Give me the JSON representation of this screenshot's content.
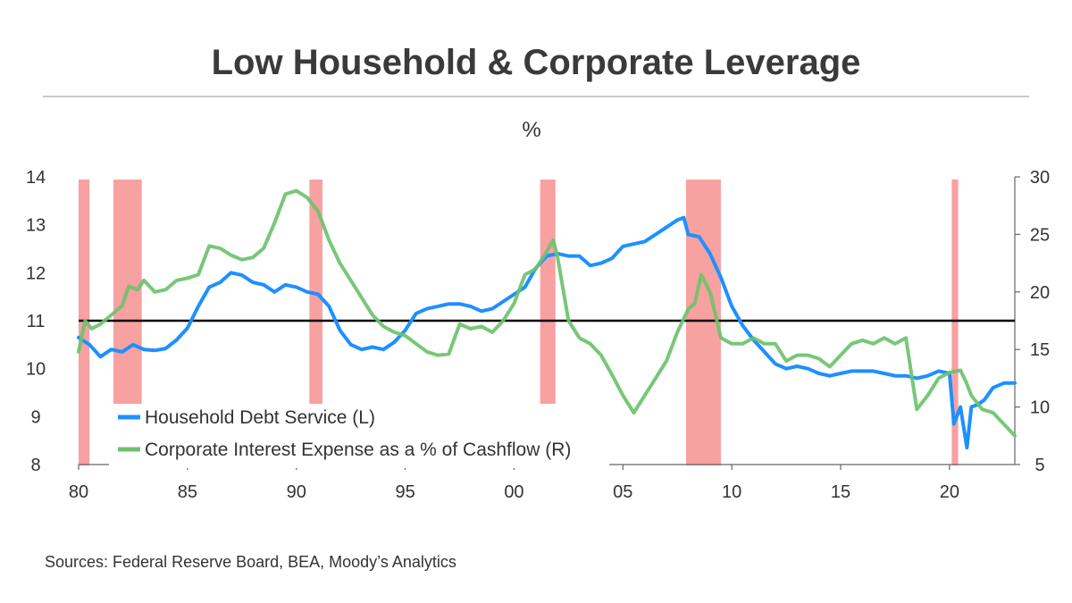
{
  "title": "Low Household & Corporate Leverage",
  "unit_label": "%",
  "source": "Sources: Federal Reserve Board, BEA, Moody’s Analytics",
  "colors": {
    "household": "#1e90ff",
    "corporate": "#6cc26c",
    "recession": "#f7a1a1",
    "reference": "#000000"
  },
  "chart_data": {
    "type": "line",
    "title": "Low Household & Corporate Leverage",
    "ylabel": "%",
    "xlim": [
      1980,
      2023
    ],
    "x_ticks": [
      1980,
      1985,
      1990,
      1995,
      2000,
      2005,
      2010,
      2015,
      2020
    ],
    "x_tick_labels": [
      "80",
      "85",
      "90",
      "95",
      "00",
      "05",
      "10",
      "15",
      "20"
    ],
    "y_left_lim": [
      8,
      14
    ],
    "y_left_ticks": [
      "8",
      "9",
      "10",
      "11",
      "12",
      "13",
      "14"
    ],
    "y_right_lim": [
      5,
      30
    ],
    "y_right_ticks": [
      "5",
      "10",
      "15",
      "20",
      "25",
      "30"
    ],
    "reference_line_left": 11,
    "grid": false,
    "legend_placement": "bottom-left",
    "recessions": [
      [
        1980.0,
        1980.5
      ],
      [
        1981.6,
        1982.9
      ],
      [
        1990.6,
        1991.2
      ],
      [
        2001.2,
        2001.9
      ],
      [
        2007.9,
        2009.5
      ],
      [
        2020.1,
        2020.4
      ]
    ],
    "series": [
      {
        "name": "Household Debt Service (L)",
        "axis": "left",
        "x": [
          1980,
          1980.5,
          1981,
          1981.5,
          1982,
          1982.5,
          1983,
          1983.5,
          1984,
          1984.5,
          1985,
          1985.5,
          1986,
          1986.5,
          1987,
          1987.5,
          1988,
          1988.5,
          1989,
          1989.5,
          1990,
          1990.5,
          1991,
          1991.5,
          1992,
          1992.5,
          1993,
          1993.5,
          1994,
          1994.5,
          1995,
          1995.5,
          1996,
          1996.5,
          1997,
          1997.5,
          1998,
          1998.5,
          1999,
          1999.5,
          2000,
          2000.5,
          2001,
          2001.5,
          2002,
          2002.5,
          2003,
          2003.5,
          2004,
          2004.5,
          2005,
          2005.5,
          2006,
          2006.5,
          2007,
          2007.5,
          2007.8,
          2008,
          2008.5,
          2009,
          2009.5,
          2010,
          2010.5,
          2011,
          2011.5,
          2012,
          2012.5,
          2013,
          2013.5,
          2014,
          2014.5,
          2015,
          2015.5,
          2016,
          2016.5,
          2017,
          2017.5,
          2018,
          2018.5,
          2019,
          2019.5,
          2020,
          2020.2,
          2020.5,
          2020.8,
          2021,
          2021.3,
          2021.6,
          2022,
          2022.5,
          2023
        ],
        "values": [
          10.65,
          10.5,
          10.25,
          10.4,
          10.35,
          10.5,
          10.4,
          10.38,
          10.42,
          10.6,
          10.85,
          11.3,
          11.7,
          11.8,
          12.0,
          11.95,
          11.8,
          11.75,
          11.6,
          11.75,
          11.7,
          11.6,
          11.55,
          11.3,
          10.8,
          10.5,
          10.4,
          10.45,
          10.4,
          10.55,
          10.8,
          11.15,
          11.25,
          11.3,
          11.35,
          11.35,
          11.3,
          11.2,
          11.25,
          11.4,
          11.55,
          11.7,
          12.1,
          12.35,
          12.4,
          12.35,
          12.35,
          12.15,
          12.2,
          12.3,
          12.55,
          12.6,
          12.65,
          12.8,
          12.95,
          13.1,
          13.15,
          12.8,
          12.75,
          12.4,
          11.9,
          11.3,
          10.9,
          10.6,
          10.35,
          10.1,
          10.0,
          10.05,
          10.0,
          9.9,
          9.85,
          9.9,
          9.95,
          9.95,
          9.95,
          9.9,
          9.85,
          9.85,
          9.8,
          9.85,
          9.95,
          9.9,
          8.85,
          9.2,
          8.35,
          9.2,
          9.25,
          9.35,
          9.6,
          9.7,
          9.7
        ]
      },
      {
        "name": "Corporate Interest Expense as a % of Cashflow (R)",
        "axis": "right",
        "x": [
          1980,
          1980.3,
          1980.6,
          1981,
          1981.5,
          1982,
          1982.3,
          1982.7,
          1983,
          1983.5,
          1984,
          1984.5,
          1985,
          1985.5,
          1986,
          1986.5,
          1987,
          1987.5,
          1988,
          1988.5,
          1989,
          1989.5,
          1990,
          1990.5,
          1991,
          1991.5,
          1992,
          1992.5,
          1993,
          1993.5,
          1994,
          1994.5,
          1995,
          1995.5,
          1996,
          1996.5,
          1997,
          1997.5,
          1998,
          1998.5,
          1999,
          1999.5,
          2000,
          2000.5,
          2001,
          2001.5,
          2001.8,
          2002,
          2002.5,
          2003,
          2003.5,
          2004,
          2004.5,
          2005,
          2005.5,
          2006,
          2006.5,
          2007,
          2007.5,
          2008,
          2008.3,
          2008.6,
          2009,
          2009.5,
          2010,
          2010.5,
          2011,
          2011.5,
          2012,
          2012.5,
          2013,
          2013.5,
          2014,
          2014.5,
          2015,
          2015.5,
          2016,
          2016.5,
          2017,
          2017.5,
          2018,
          2018.5,
          2019,
          2019.5,
          2020,
          2020.5,
          2020.8,
          2021,
          2021.5,
          2022,
          2022.5,
          2023
        ],
        "values": [
          14.8,
          17.5,
          16.8,
          17.2,
          18.0,
          18.8,
          20.5,
          20.2,
          21.0,
          20.0,
          20.2,
          21.0,
          21.2,
          21.5,
          24.0,
          23.8,
          23.2,
          22.8,
          23.0,
          23.8,
          26.0,
          28.5,
          28.8,
          28.2,
          27.0,
          24.5,
          22.5,
          21.0,
          19.5,
          18.0,
          17.0,
          16.5,
          16.2,
          15.5,
          14.8,
          14.5,
          14.6,
          17.2,
          16.8,
          17.0,
          16.5,
          17.5,
          19.0,
          21.5,
          22.0,
          23.5,
          24.5,
          23.0,
          17.5,
          16.0,
          15.5,
          14.5,
          12.8,
          11.0,
          9.5,
          11.0,
          12.5,
          14.0,
          16.5,
          18.5,
          19.0,
          21.5,
          20.0,
          16.0,
          15.5,
          15.5,
          16.0,
          15.5,
          15.5,
          14.0,
          14.5,
          14.5,
          14.2,
          13.5,
          14.5,
          15.5,
          15.8,
          15.5,
          16.0,
          15.5,
          16.0,
          9.8,
          11.0,
          12.5,
          13.0,
          13.2,
          12.0,
          11.0,
          9.8,
          9.5,
          8.5,
          7.5
        ]
      }
    ]
  }
}
